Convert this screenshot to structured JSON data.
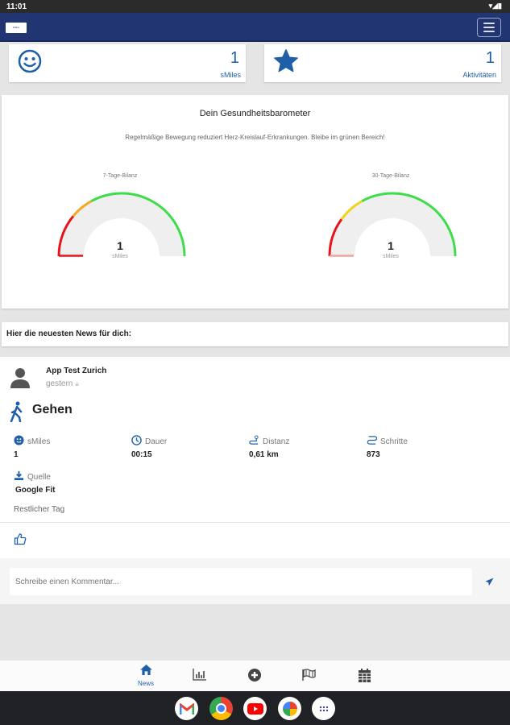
{
  "status_bar": {
    "time": "11:01"
  },
  "header": {
    "logo_text": "sMiles",
    "menu_icon": "hamburger-icon"
  },
  "stats": [
    {
      "icon": "smiley-icon",
      "value": "1",
      "label": "sMiles"
    },
    {
      "icon": "star-icon",
      "value": "1",
      "label": "Aktivitäten"
    }
  ],
  "barometer": {
    "title": "Dein Gesundheitsbarometer",
    "subtitle": "Regelmäßige Bewegung reduziert Herz-Kreislauf-Erkrankungen. Bleibe im grünen Bereich!",
    "gauges": [
      {
        "label": "7-Tage-Bilanz",
        "value": "1",
        "unit": "sMiles"
      },
      {
        "label": "30-Tage-Bilanz",
        "value": "1",
        "unit": "sMiles"
      }
    ],
    "colors": {
      "red": "#e8141c",
      "orange": "#f5a623",
      "yellow": "#f2d21b",
      "green": "#3ddc4a",
      "track": "#efefef"
    }
  },
  "news": {
    "heading": "Hier die neuesten News für dich:"
  },
  "post": {
    "author": "App Test Zurich",
    "time": "gestern",
    "activity": "Gehen",
    "metrics": [
      {
        "icon": "smiley-icon",
        "label": "sMiles",
        "value": "1"
      },
      {
        "icon": "clock-icon",
        "label": "Dauer",
        "value": "00:15"
      },
      {
        "icon": "distance-icon",
        "label": "Distanz",
        "value": "0,61 km"
      },
      {
        "icon": "steps-icon",
        "label": "Schritte",
        "value": "873"
      }
    ],
    "source": {
      "label": "Quelle",
      "value": "Google Fit"
    },
    "note": "Restlicher Tag"
  },
  "comment": {
    "placeholder": "Schreibe einen Kommentar..."
  },
  "bottom_nav": [
    {
      "icon": "home-icon",
      "label": "News",
      "active": true
    },
    {
      "icon": "chart-icon"
    },
    {
      "icon": "plus-circle-icon"
    },
    {
      "icon": "flag-icon"
    },
    {
      "icon": "calendar-icon"
    }
  ],
  "dock": [
    "gmail-icon",
    "chrome-icon",
    "youtube-icon",
    "photos-icon",
    "app-drawer-icon"
  ],
  "accent": "#1f5fa8",
  "header_color": "#213572"
}
